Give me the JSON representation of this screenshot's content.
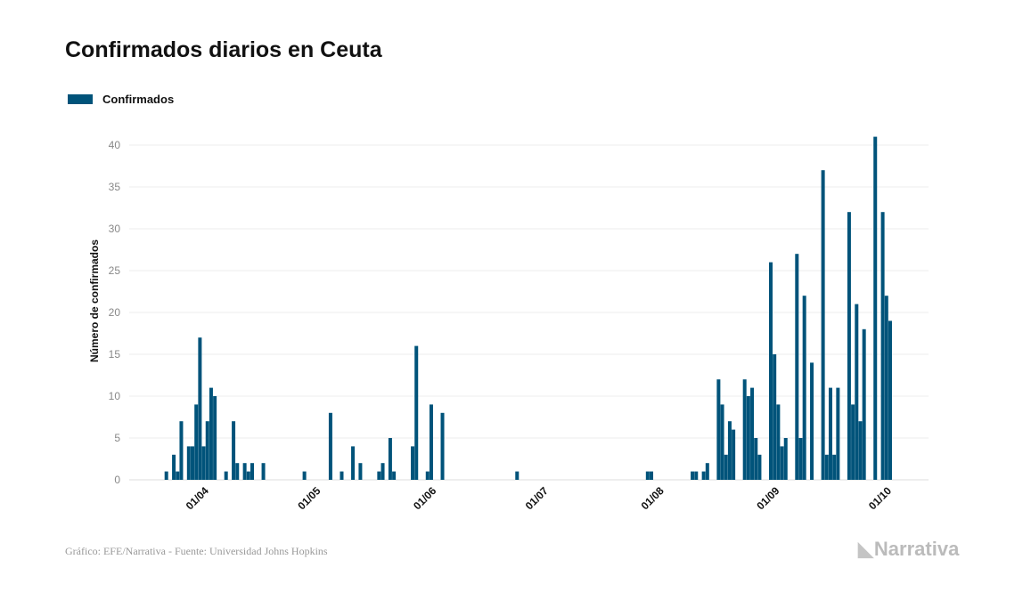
{
  "chart_data": {
    "type": "bar",
    "title": "Confirmados diarios en Ceuta",
    "xlabel": "",
    "ylabel": "Número de confirmados",
    "ylim": [
      0,
      42
    ],
    "yticks": [
      0,
      5,
      10,
      15,
      20,
      25,
      30,
      35,
      40
    ],
    "grid": true,
    "legend_placement": "top-left",
    "color": "#00537a",
    "x_start_date": "21/03",
    "x_tick_labels": [
      {
        "label": "01/04",
        "day": 11
      },
      {
        "label": "01/05",
        "day": 41
      },
      {
        "label": "01/06",
        "day": 72
      },
      {
        "label": "01/07",
        "day": 102
      },
      {
        "label": "01/08",
        "day": 133
      },
      {
        "label": "01/09",
        "day": 164
      },
      {
        "label": "01/10",
        "day": 194
      }
    ],
    "series": [
      {
        "name": "Confirmados",
        "points": [
          [
            0,
            1
          ],
          [
            2,
            3
          ],
          [
            3,
            1
          ],
          [
            4,
            7
          ],
          [
            6,
            4
          ],
          [
            7,
            4
          ],
          [
            8,
            9
          ],
          [
            9,
            17
          ],
          [
            10,
            4
          ],
          [
            11,
            7
          ],
          [
            12,
            11
          ],
          [
            13,
            10
          ],
          [
            16,
            1
          ],
          [
            18,
            7
          ],
          [
            19,
            2
          ],
          [
            21,
            2
          ],
          [
            22,
            1
          ],
          [
            23,
            2
          ],
          [
            26,
            2
          ],
          [
            37,
            1
          ],
          [
            44,
            8
          ],
          [
            47,
            1
          ],
          [
            50,
            4
          ],
          [
            52,
            2
          ],
          [
            57,
            1
          ],
          [
            58,
            2
          ],
          [
            60,
            5
          ],
          [
            61,
            1
          ],
          [
            66,
            4
          ],
          [
            67,
            16
          ],
          [
            70,
            1
          ],
          [
            71,
            9
          ],
          [
            74,
            8
          ],
          [
            94,
            1
          ],
          [
            129,
            1
          ],
          [
            130,
            1
          ],
          [
            141,
            1
          ],
          [
            142,
            1
          ],
          [
            144,
            1
          ],
          [
            145,
            2
          ],
          [
            148,
            12
          ],
          [
            149,
            9
          ],
          [
            150,
            3
          ],
          [
            151,
            7
          ],
          [
            152,
            6
          ],
          [
            155,
            12
          ],
          [
            156,
            10
          ],
          [
            157,
            11
          ],
          [
            158,
            5
          ],
          [
            159,
            3
          ],
          [
            162,
            26
          ],
          [
            163,
            15
          ],
          [
            164,
            9
          ],
          [
            165,
            4
          ],
          [
            166,
            5
          ],
          [
            169,
            27
          ],
          [
            170,
            5
          ],
          [
            171,
            22
          ],
          [
            173,
            14
          ],
          [
            176,
            37
          ],
          [
            177,
            3
          ],
          [
            178,
            11
          ],
          [
            179,
            3
          ],
          [
            180,
            11
          ],
          [
            183,
            32
          ],
          [
            184,
            9
          ],
          [
            185,
            21
          ],
          [
            186,
            7
          ],
          [
            187,
            18
          ],
          [
            190,
            41
          ],
          [
            192,
            32
          ],
          [
            193,
            22
          ],
          [
            194,
            19
          ]
        ]
      }
    ]
  },
  "footer": "Gráfico: EFE/Narrativa - Fuente: Universidad Johns Hopkins",
  "logo": "Narrativa"
}
